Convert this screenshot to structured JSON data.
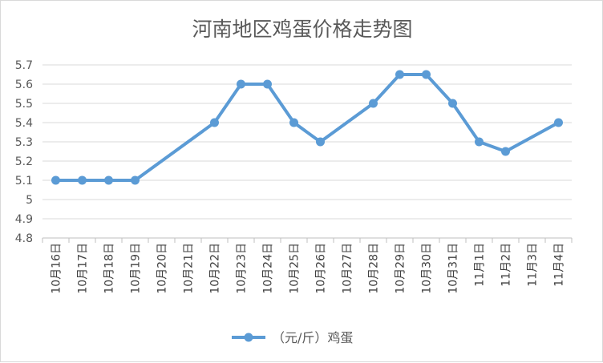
{
  "chart_data": {
    "type": "line",
    "title": "河南地区鸡蛋价格走势图",
    "categories": [
      "10月16日",
      "10月17日",
      "10月18日",
      "10月19日",
      "10月20日",
      "10月21日",
      "10月22日",
      "10月23日",
      "10月24日",
      "10月25日",
      "10月26日",
      "10月27日",
      "10月28日",
      "10月29日",
      "10月30日",
      "10月31日",
      "11月1日",
      "11月2日",
      "11月3日",
      "11月4日"
    ],
    "y_ticks": [
      "5.7",
      "5.6",
      "5.5",
      "5.4",
      "5.3",
      "5.2",
      "5.1",
      "5",
      "4.9",
      "4.8"
    ],
    "ylim": [
      4.8,
      5.7
    ],
    "grid": true,
    "legend_position": "bottom",
    "series": [
      {
        "name": "（元/斤）鸡蛋",
        "color": "#5b9bd5",
        "values": [
          5.1,
          5.1,
          5.1,
          5.1,
          null,
          null,
          5.4,
          5.6,
          5.6,
          5.4,
          5.3,
          null,
          5.5,
          5.65,
          5.65,
          5.5,
          5.3,
          5.25,
          null,
          5.4
        ]
      }
    ]
  }
}
